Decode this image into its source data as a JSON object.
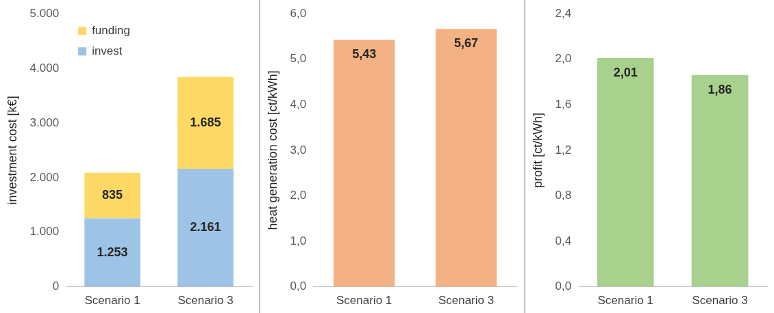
{
  "chart_data": [
    {
      "type": "bar",
      "stacked": true,
      "categories": [
        "Scenario 1",
        "Scenario 3"
      ],
      "ylabel": "investment cost [k€]",
      "ylim": [
        0,
        5000
      ],
      "yticks": [
        0,
        {
          "value": 1000,
          "label": "1.000"
        },
        {
          "value": 2000,
          "label": "2.000"
        },
        {
          "value": 3000,
          "label": "3.000"
        },
        {
          "value": 4000,
          "label": "4.000"
        },
        {
          "value": 5000,
          "label": "5.000"
        }
      ],
      "legend": "top left",
      "grid": false,
      "series": [
        {
          "name": "invest",
          "color": "#9dc3e6",
          "values": [
            1253,
            2161
          ],
          "value_labels": [
            "1.253",
            "2.161"
          ]
        },
        {
          "name": "funding",
          "color": "#ffd966",
          "values": [
            835,
            1685
          ],
          "value_labels": [
            "835",
            "1.685"
          ]
        }
      ]
    },
    {
      "type": "bar",
      "categories": [
        "Scenario 1",
        "Scenario 3"
      ],
      "ylabel": "heat generation cost [ct/kWh]",
      "ylim": [
        0,
        6
      ],
      "yticks": [
        {
          "value": 0,
          "label": "0,0"
        },
        {
          "value": 1,
          "label": "1,0"
        },
        {
          "value": 2,
          "label": "2,0"
        },
        {
          "value": 3,
          "label": "3,0"
        },
        {
          "value": 4,
          "label": "4,0"
        },
        {
          "value": 5,
          "label": "5,0"
        },
        {
          "value": 6,
          "label": "6,0"
        }
      ],
      "grid": false,
      "color": "#f4b183",
      "values": [
        5.43,
        5.67
      ],
      "value_labels": [
        "5,43",
        "5,67"
      ]
    },
    {
      "type": "bar",
      "categories": [
        "Scenario 1",
        "Scenario 3"
      ],
      "ylabel": "profit [ct/kWh]",
      "ylim": [
        0,
        2.4
      ],
      "yticks": [
        {
          "value": 0,
          "label": "0,0"
        },
        {
          "value": 0.4,
          "label": "0,4"
        },
        {
          "value": 0.8,
          "label": "0,8"
        },
        {
          "value": 1.2,
          "label": "1,2"
        },
        {
          "value": 1.6,
          "label": "1,6"
        },
        {
          "value": 2,
          "label": "2,0"
        },
        {
          "value": 2.4,
          "label": "2,4"
        }
      ],
      "grid": false,
      "color": "#a9d18e",
      "values": [
        2.01,
        1.86
      ],
      "value_labels": [
        "2,01",
        "1,86"
      ]
    }
  ]
}
